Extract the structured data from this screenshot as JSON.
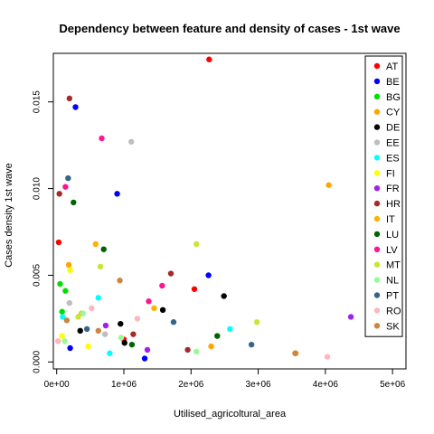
{
  "chart_data": {
    "type": "scatter",
    "title": "Dependency between feature and density of cases -  1st wave",
    "xlabel": "Utilised_agricoltural_area",
    "ylabel": "Cases density  1st wave",
    "xlim": [
      -50000,
      5200000
    ],
    "ylim": [
      -0.0004,
      0.0178
    ],
    "x_ticks": [
      {
        "value": 0,
        "label": "0e+00"
      },
      {
        "value": 1000000,
        "label": "1e+06"
      },
      {
        "value": 2000000,
        "label": "2e+06"
      },
      {
        "value": 3000000,
        "label": "3e+06"
      },
      {
        "value": 4000000,
        "label": "4e+06"
      },
      {
        "value": 5000000,
        "label": "5e+06"
      }
    ],
    "y_ticks": [
      {
        "value": 0.0,
        "label": "0.000"
      },
      {
        "value": 0.005,
        "label": "0.005"
      },
      {
        "value": 0.01,
        "label": "0.010"
      },
      {
        "value": 0.015,
        "label": "0.015"
      }
    ],
    "legend_position": "top-right",
    "series": [
      {
        "name": "AT",
        "color": "#ff0000",
        "points": [
          [
            2270000,
            0.01745
          ],
          [
            2050000,
            0.0042
          ],
          [
            30000,
            0.0069
          ],
          [
            1000000,
            0.0013
          ]
        ]
      },
      {
        "name": "BE",
        "color": "#0000ff",
        "points": [
          [
            280000,
            0.0147
          ],
          [
            900000,
            0.0097
          ],
          [
            2260000,
            0.005
          ],
          [
            1310000,
            0.0002
          ],
          [
            200000,
            0.0008
          ]
        ]
      },
      {
        "name": "BG",
        "color": "#00e000",
        "points": [
          [
            50000,
            0.0045
          ],
          [
            130000,
            0.0041
          ],
          [
            80000,
            0.0029
          ]
        ]
      },
      {
        "name": "CY",
        "color": "#ffa500",
        "points": [
          [
            4050000,
            0.0102
          ],
          [
            3560000,
            0.0005
          ],
          [
            2300000,
            0.0009
          ],
          [
            180000,
            0.0056
          ]
        ]
      },
      {
        "name": "DE",
        "color": "#000000",
        "points": [
          [
            2490000,
            0.0038
          ],
          [
            1580000,
            0.003
          ],
          [
            350000,
            0.0018
          ],
          [
            950000,
            0.0022
          ],
          [
            1010000,
            0.0011
          ]
        ]
      },
      {
        "name": "EE",
        "color": "#bebebe",
        "points": [
          [
            1110000,
            0.0127
          ],
          [
            190000,
            0.0034
          ],
          [
            720000,
            0.0016
          ]
        ]
      },
      {
        "name": "ES",
        "color": "#00ffff",
        "points": [
          [
            2580000,
            0.0019
          ],
          [
            620000,
            0.0037
          ],
          [
            790000,
            0.0005
          ],
          [
            90000,
            0.0026
          ]
        ]
      },
      {
        "name": "FI",
        "color": "#ffff00",
        "points": [
          [
            200000,
            0.0053
          ],
          [
            80000,
            0.0015
          ],
          [
            470000,
            0.0009
          ]
        ]
      },
      {
        "name": "FR",
        "color": "#a020f0",
        "points": [
          [
            4380000,
            0.0026
          ],
          [
            730000,
            0.0021
          ],
          [
            1350000,
            0.0007
          ]
        ]
      },
      {
        "name": "HR",
        "color": "#a52a2a",
        "points": [
          [
            190000,
            0.0152
          ],
          [
            40000,
            0.0097
          ],
          [
            1700000,
            0.0051
          ],
          [
            1140000,
            0.0016
          ],
          [
            1950000,
            0.0007
          ]
        ]
      },
      {
        "name": "IT",
        "color": "#ffb300",
        "points": [
          [
            580000,
            0.0068
          ],
          [
            370000,
            0.0028
          ],
          [
            1450000,
            0.0031
          ]
        ]
      },
      {
        "name": "LU",
        "color": "#006400",
        "points": [
          [
            250000,
            0.0092
          ],
          [
            700000,
            0.0065
          ],
          [
            1120000,
            0.001
          ],
          [
            2390000,
            0.0015
          ]
        ]
      },
      {
        "name": "LV",
        "color": "#ff1493",
        "points": [
          [
            670000,
            0.0129
          ],
          [
            130000,
            0.0101
          ],
          [
            1570000,
            0.0044
          ],
          [
            1370000,
            0.0035
          ]
        ]
      },
      {
        "name": "MT",
        "color": "#c8e632",
        "points": [
          [
            2080000,
            0.0068
          ],
          [
            2980000,
            0.0023
          ],
          [
            650000,
            0.0055
          ],
          [
            320000,
            0.0026
          ]
        ]
      },
      {
        "name": "NL",
        "color": "#98fb98",
        "points": [
          [
            390000,
            0.0028
          ],
          [
            960000,
            0.0014
          ],
          [
            2080000,
            0.0006
          ],
          [
            120000,
            0.0012
          ]
        ]
      },
      {
        "name": "PT",
        "color": "#36648b",
        "points": [
          [
            170000,
            0.0106
          ],
          [
            1740000,
            0.0023
          ],
          [
            2900000,
            0.001
          ],
          [
            450000,
            0.0019
          ]
        ]
      },
      {
        "name": "RO",
        "color": "#ffb6c1",
        "points": [
          [
            4030000,
            0.0003
          ],
          [
            1200000,
            0.0025
          ],
          [
            520000,
            0.0031
          ],
          [
            20000,
            0.0012
          ]
        ]
      },
      {
        "name": "SK",
        "color": "#cd853f",
        "points": [
          [
            3550000,
            0.0005
          ],
          [
            940000,
            0.0047
          ],
          [
            620000,
            0.0018
          ],
          [
            150000,
            0.0024
          ]
        ]
      }
    ]
  }
}
